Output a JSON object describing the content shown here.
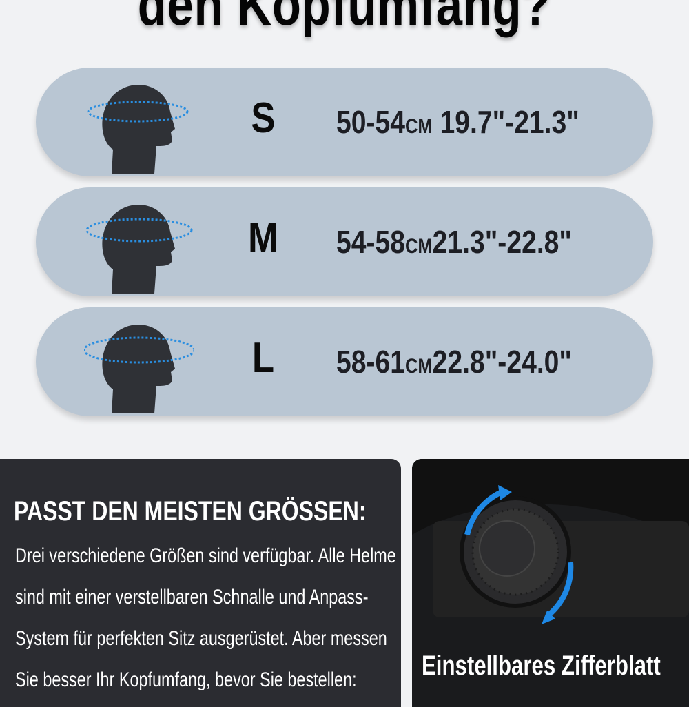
{
  "title": "den Kopfumfang?",
  "sizes": [
    {
      "size": "S",
      "cm": "50-54",
      "cm_unit": "CM",
      "inch": "19.7\"-21.3\""
    },
    {
      "size": "M",
      "cm": "54-58",
      "cm_unit": "CM",
      "inch": "21.3\"-22.8\""
    },
    {
      "size": "L",
      "cm": "58-61",
      "cm_unit": "CM",
      "inch": "22.8\"-24.0\""
    }
  ],
  "info": {
    "heading": "PASST DEN MEISTEN GRÖSSEN:",
    "lines": [
      "Drei verschiedene Größen sind verfügbar. Alle Helme",
      "sind mit einer verstellbaren Schnalle und Anpass-",
      "System für perfekten Sitz ausgerüstet. Aber messen",
      "Sie besser Ihr Kopfumfang, bevor Sie bestellen:"
    ]
  },
  "dial": {
    "caption": "Einstellbares Zifferblatt"
  },
  "colors": {
    "band": "#b9c6d3",
    "card": "#2b2c31",
    "accent": "#1e88e5"
  }
}
